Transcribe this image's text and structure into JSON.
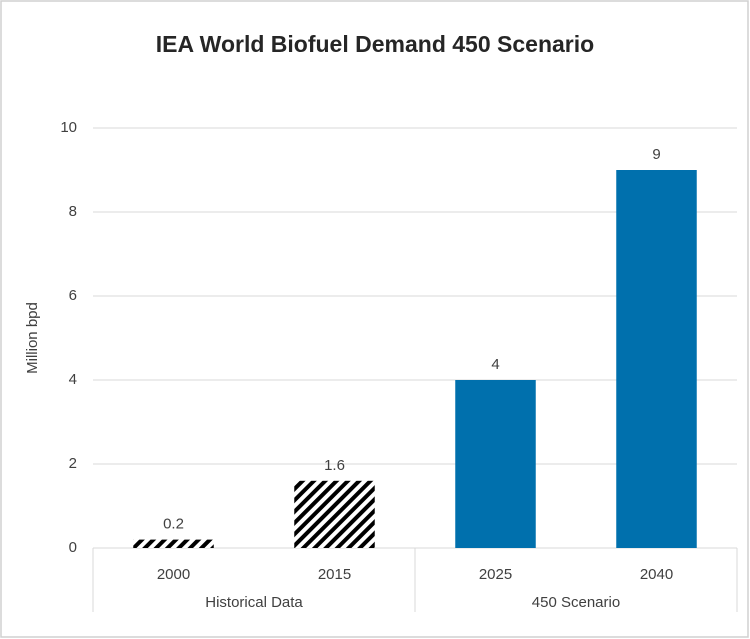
{
  "chart_data": {
    "type": "bar",
    "title": "IEA World Biofuel Demand 450 Scenario",
    "y_label": "Million bpd",
    "categories": [
      "2000",
      "2015",
      "2025",
      "2040"
    ],
    "group_labels": [
      "Historical Data",
      "Historical Data",
      "450 Scenario",
      "450 Scenario"
    ],
    "values": [
      0.2,
      1.6,
      4,
      9
    ],
    "fills": [
      "hatched",
      "hatched",
      "solid",
      "solid"
    ],
    "color": "#0070ad",
    "hatch_color": "#000000",
    "ylim": [
      0,
      10
    ],
    "yticks": [
      0,
      2,
      4,
      6,
      8,
      10
    ],
    "grid": true
  }
}
